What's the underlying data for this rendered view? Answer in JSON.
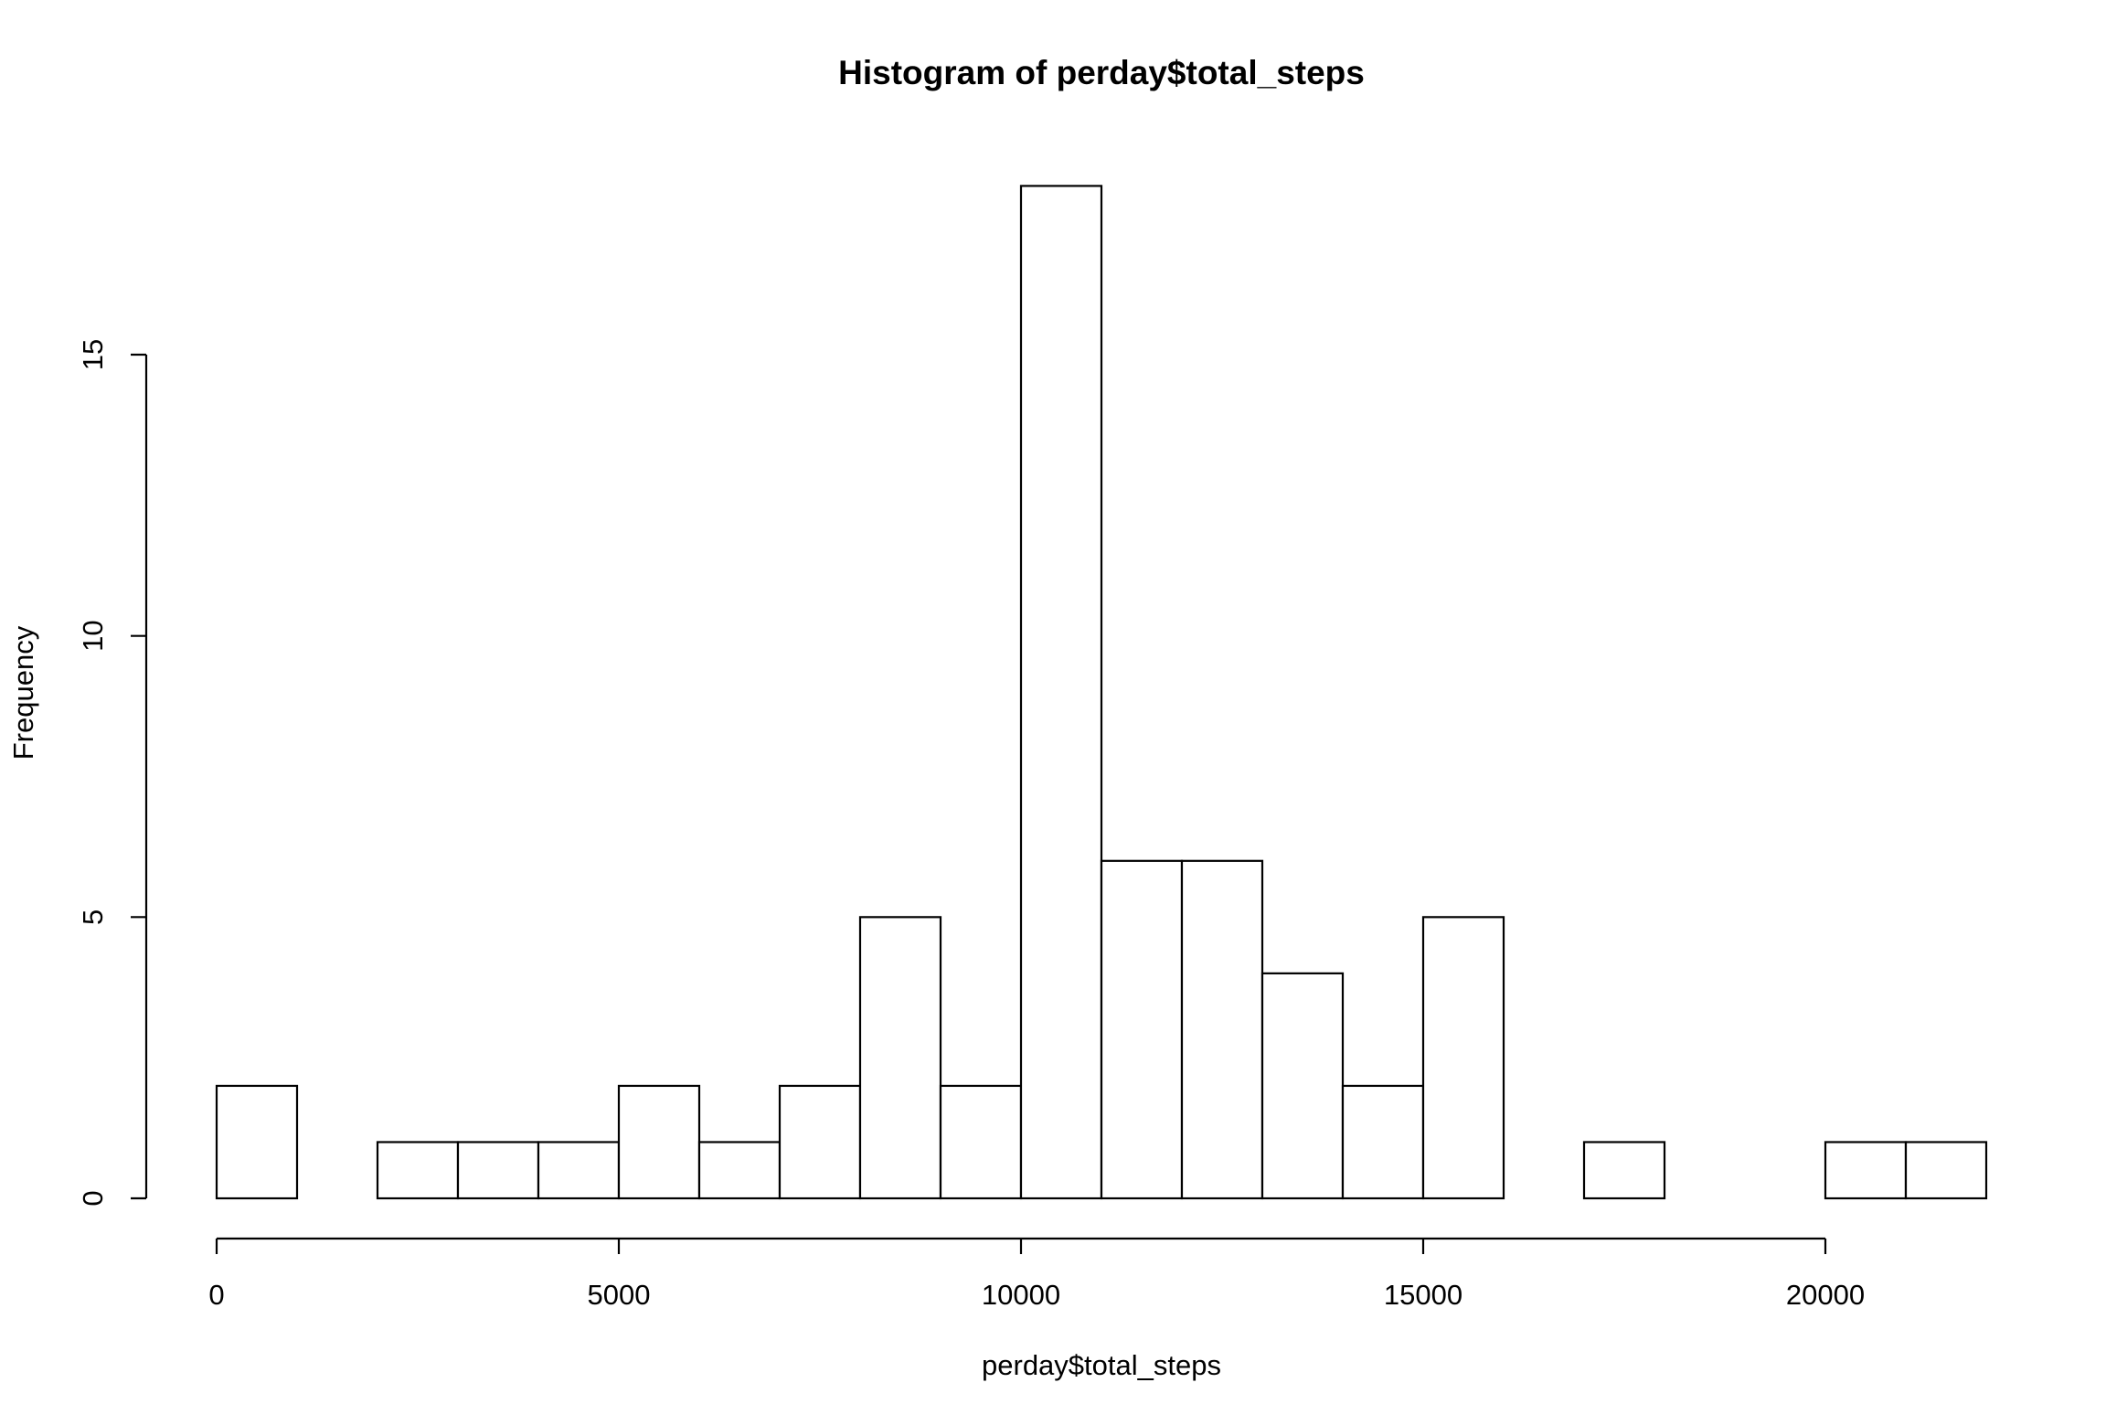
{
  "chart_data": {
    "type": "bar",
    "subtype": "histogram",
    "title": "Histogram of perday$total_steps",
    "xlabel": "perday$total_steps",
    "ylabel": "Frequency",
    "bin_width": 1000,
    "bins": [
      {
        "start": 0,
        "end": 1000,
        "count": 2
      },
      {
        "start": 1000,
        "end": 2000,
        "count": 0
      },
      {
        "start": 2000,
        "end": 3000,
        "count": 1
      },
      {
        "start": 3000,
        "end": 4000,
        "count": 1
      },
      {
        "start": 4000,
        "end": 5000,
        "count": 1
      },
      {
        "start": 5000,
        "end": 6000,
        "count": 2
      },
      {
        "start": 6000,
        "end": 7000,
        "count": 1
      },
      {
        "start": 7000,
        "end": 8000,
        "count": 2
      },
      {
        "start": 8000,
        "end": 9000,
        "count": 5
      },
      {
        "start": 9000,
        "end": 10000,
        "count": 2
      },
      {
        "start": 10000,
        "end": 11000,
        "count": 18
      },
      {
        "start": 11000,
        "end": 12000,
        "count": 6
      },
      {
        "start": 12000,
        "end": 13000,
        "count": 6
      },
      {
        "start": 13000,
        "end": 14000,
        "count": 4
      },
      {
        "start": 14000,
        "end": 15000,
        "count": 2
      },
      {
        "start": 15000,
        "end": 16000,
        "count": 5
      },
      {
        "start": 16000,
        "end": 17000,
        "count": 0
      },
      {
        "start": 17000,
        "end": 18000,
        "count": 1
      },
      {
        "start": 18000,
        "end": 19000,
        "count": 0
      },
      {
        "start": 19000,
        "end": 20000,
        "count": 0
      },
      {
        "start": 20000,
        "end": 21000,
        "count": 1
      },
      {
        "start": 21000,
        "end": 22000,
        "count": 1
      }
    ],
    "xticks": [
      "0",
      "5000",
      "10000",
      "15000",
      "20000"
    ],
    "yticks": [
      "0",
      "5",
      "10",
      "15"
    ],
    "xlim": [
      0,
      22000
    ],
    "ylim": [
      0,
      18
    ],
    "grid": false,
    "legend": "none",
    "colors": {
      "bar_fill": "#ffffff",
      "bar_stroke": "#000000"
    }
  }
}
